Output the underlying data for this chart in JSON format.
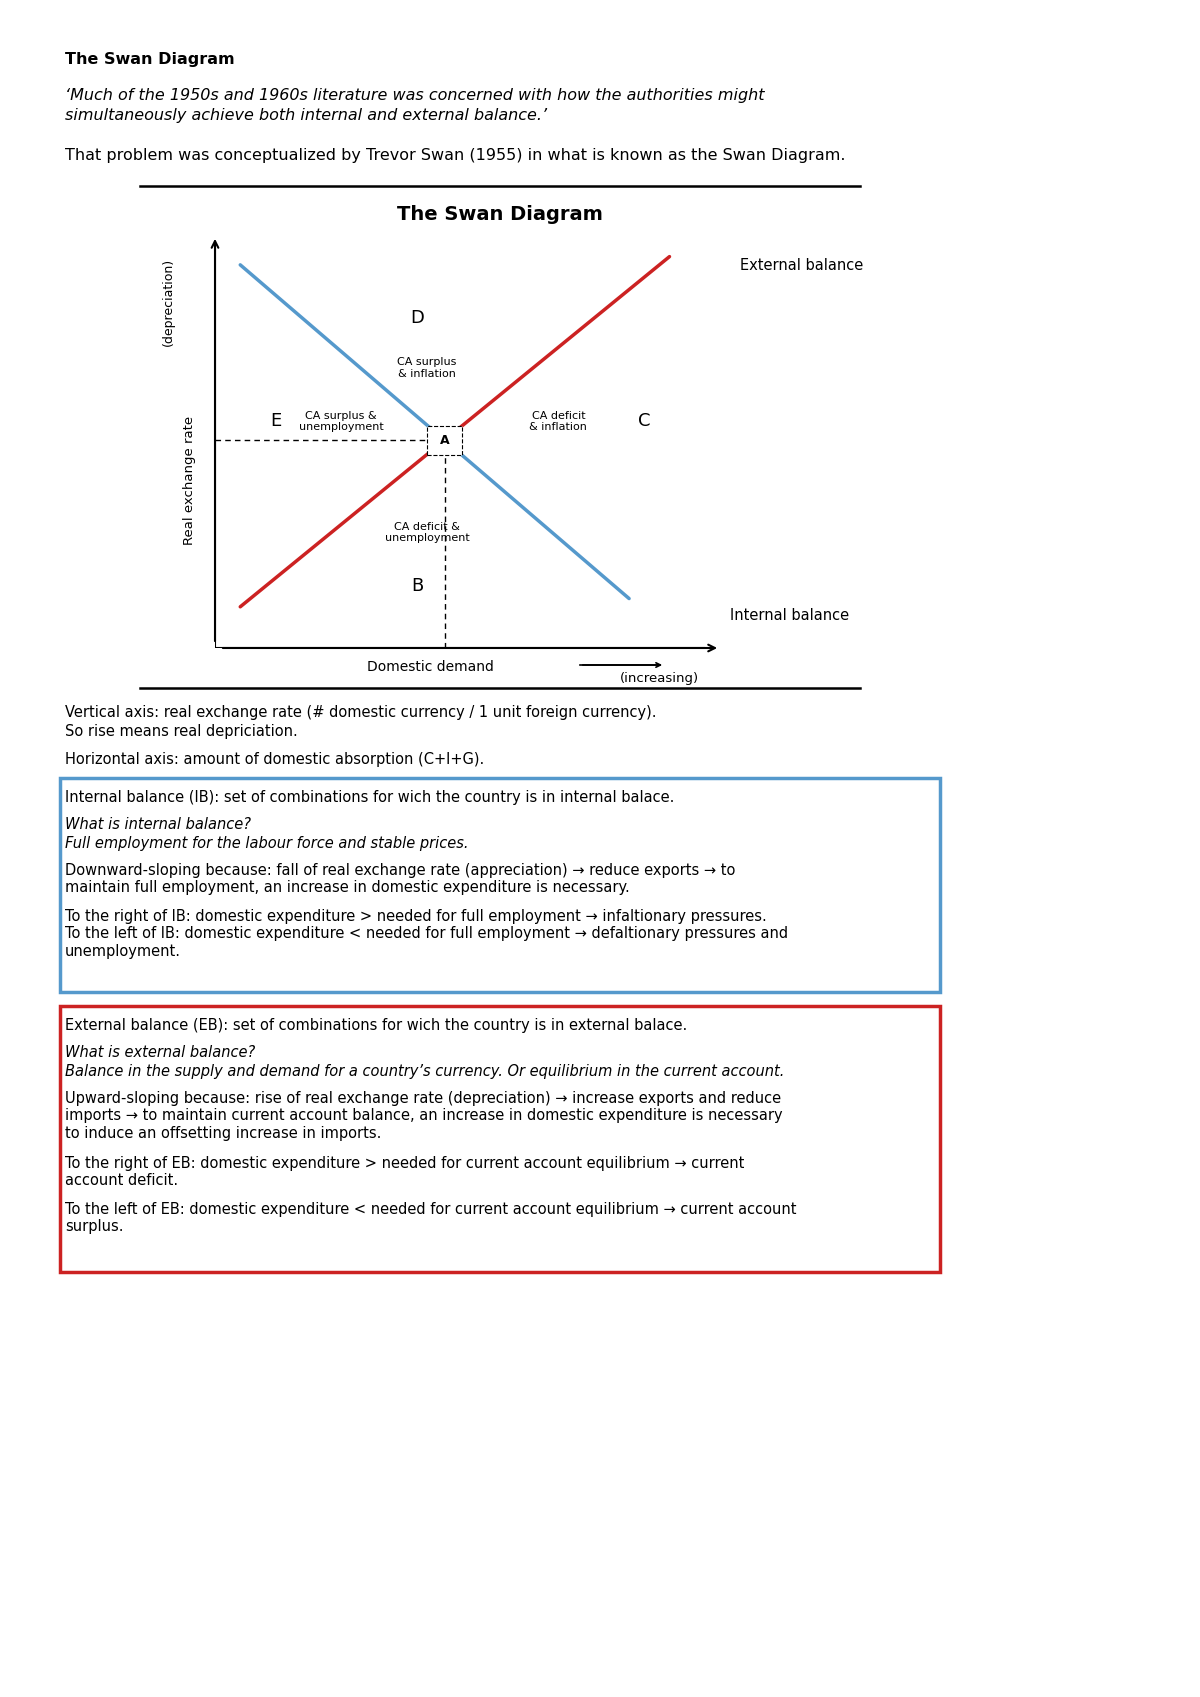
{
  "bold_title": "The Swan Diagram",
  "italic_quote_line1": "‘Much of the 1950s and 1960s literature was concerned with how the authorities might",
  "italic_quote_line2": "simultaneously achieve both internal and external balance.’",
  "intro_text": "That problem was conceptualized by Trevor Swan (1955) in what is known as the Swan Diagram.",
  "diagram_title": "The Swan Diagram",
  "ib_label": "Internal balance",
  "eb_label": "External balance",
  "point_A": "A",
  "point_B": "B",
  "point_C": "C",
  "point_D": "D",
  "point_E": "E",
  "region_D_text": "CA surplus\n& inflation",
  "region_E_text": "CA surplus &\nunemployment",
  "region_C_text": "CA deficit\n& inflation",
  "region_B_text": "CA deficit &\nunemployment",
  "ib_color": "#5599cc",
  "eb_color": "#cc2222",
  "background": "#ffffff",
  "box1_color": "#5599cc",
  "box2_color": "#cc2222",
  "vertical_text1": "Vertical axis: real exchange rate (# domestic currency / 1 unit foreign currency).",
  "vertical_text2": "So rise means real depriciation.",
  "horizontal_text": "Horizontal axis: amount of domestic absorption (C+I+G).",
  "ib_box_title": "Internal balance (IB): set of combinations for wich the country is in internal balace.",
  "ib_box_q": "What is internal balance?",
  "ib_box_a": "Full employment for the labour force and stable prices.",
  "ib_box_p1": "Downward-sloping because: fall of real exchange rate (appreciation) → reduce exports → to\nmaintain full employment, an increase in domestic expenditure is necessary.",
  "ib_box_p2": "To the right of IB: domestic expenditure > needed for full employment → infaltionary pressures.\nTo the left of IB: domestic expenditure < needed for full employment → defaltionary pressures and\nunemployment.",
  "eb_box_title": "External balance (EB): set of combinations for wich the country is in external balace.",
  "eb_box_q": "What is external balance?",
  "eb_box_a": "Balance in the supply and demand for a country’s currency. Or equilibrium in the current account.",
  "eb_box_p1": "Upward-sloping because: rise of real exchange rate (depreciation) → increase exports and reduce\nimports → to maintain current account balance, an increase in domestic expenditure is necessary\nto induce an offsetting increase in imports.",
  "eb_box_p2": "To the right of EB: domestic expenditure > needed for current account equilibrium → current\naccount deficit.",
  "eb_box_p3": "To the left of EB: domestic expenditure < needed for current account equilibrium → current account\nsurplus."
}
